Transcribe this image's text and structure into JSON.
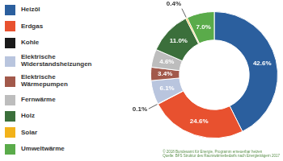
{
  "chart_data": {
    "type": "doughnut",
    "categories": [
      "Heizöl",
      "Erdgas",
      "Kohle",
      "Elektrische Widerstandsheizungen",
      "Elektrische Wärmepumpen",
      "Fernwärme",
      "Holz",
      "Solar",
      "Umweltwärme"
    ],
    "values": [
      42.6,
      24.6,
      0.1,
      6.1,
      3.4,
      4.6,
      11.0,
      0.4,
      7.0
    ],
    "value_labels": [
      "42.6%",
      "24.6%",
      "0.1%",
      "6.1%",
      "3.4%",
      "4.6%",
      "11.0%",
      "0.4%",
      "7.0%"
    ],
    "colors": [
      "#2b5f9e",
      "#e8512f",
      "#1a1a1a",
      "#b9c5de",
      "#a2594b",
      "#bdbdbd",
      "#3b6f3b",
      "#f2b21a",
      "#5aab4a"
    ],
    "data_labels": true,
    "legend": "left",
    "annotations": [
      "© 2018 Bundesamt für Energie, Programm erneuerbar heizen",
      "Quelle: BFS Struktur des Raumwärmebedarfs nach Energieträgern 2017"
    ]
  }
}
